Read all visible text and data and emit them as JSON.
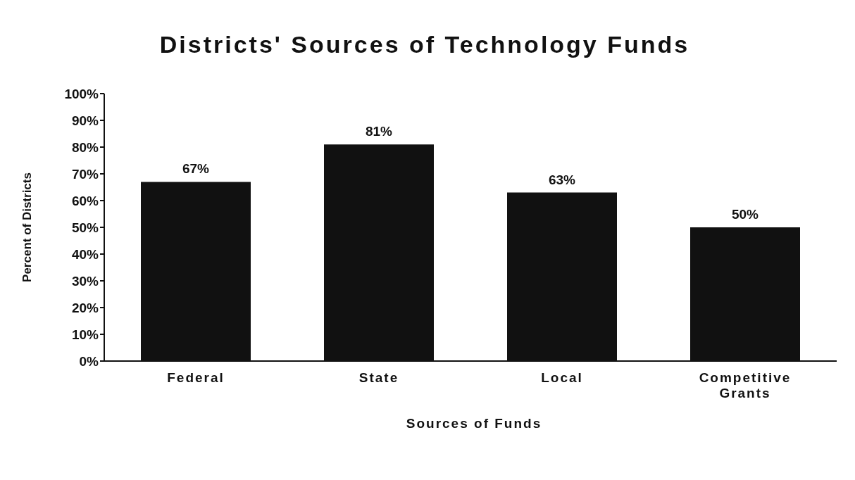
{
  "chart_data": {
    "type": "bar",
    "title": "Districts' Sources of Technology Funds",
    "xlabel": "Sources of Funds",
    "ylabel": "Percent of Districts",
    "categories": [
      "Federal",
      "State",
      "Local",
      "Competitive Grants"
    ],
    "values": [
      67,
      81,
      63,
      50
    ],
    "value_labels": [
      "67%",
      "81%",
      "63%",
      "50%"
    ],
    "color": "#111111",
    "ylim": [
      0,
      100
    ],
    "yticks": [
      {
        "value": 0,
        "label": "0%"
      },
      {
        "value": 10,
        "label": "10%"
      },
      {
        "value": 20,
        "label": "20%"
      },
      {
        "value": 30,
        "label": "30%"
      },
      {
        "value": 40,
        "label": "40%"
      },
      {
        "value": 50,
        "label": "50%"
      },
      {
        "value": 60,
        "label": "60%"
      },
      {
        "value": 70,
        "label": "70%"
      },
      {
        "value": 80,
        "label": "80%"
      },
      {
        "value": 90,
        "label": "90%"
      },
      {
        "value": 100,
        "label": "100%"
      }
    ],
    "grid": false,
    "legend": false
  }
}
